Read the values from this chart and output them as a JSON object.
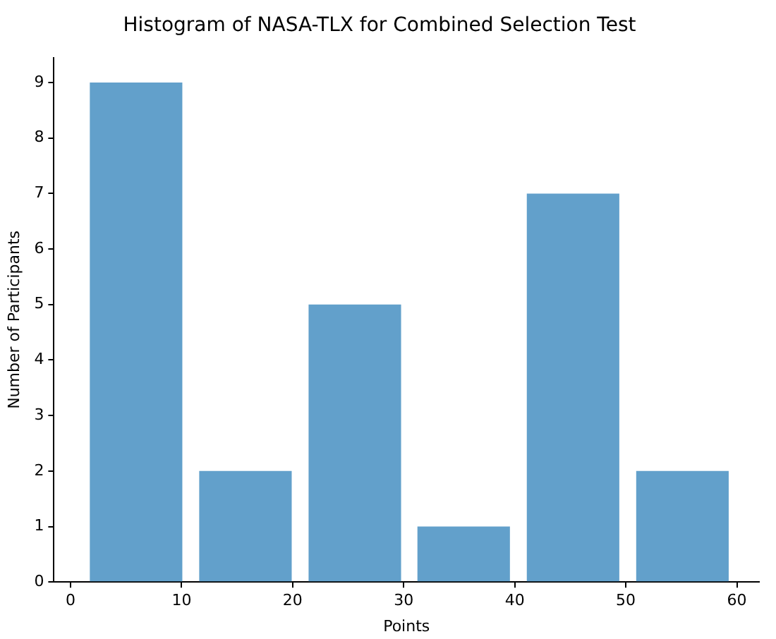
{
  "chart_data": {
    "type": "histogram",
    "title": "Histogram of NASA-TLX for Combined Selection Test",
    "xlabel": "Points",
    "ylabel": "Number of Participants",
    "bins": [
      1,
      10.8,
      20.7,
      30.5,
      40.3,
      50.2,
      60
    ],
    "values": [
      9,
      2,
      5,
      1,
      7,
      2
    ],
    "color": "#62a0cb",
    "xlim": [
      -1.5,
      62
    ],
    "xticks": [
      0,
      10,
      20,
      30,
      40,
      50,
      60
    ],
    "ylim": [
      0,
      9.45
    ],
    "yticks": [
      0,
      1,
      2,
      3,
      4,
      5,
      6,
      7,
      8,
      9
    ],
    "grid": false
  }
}
